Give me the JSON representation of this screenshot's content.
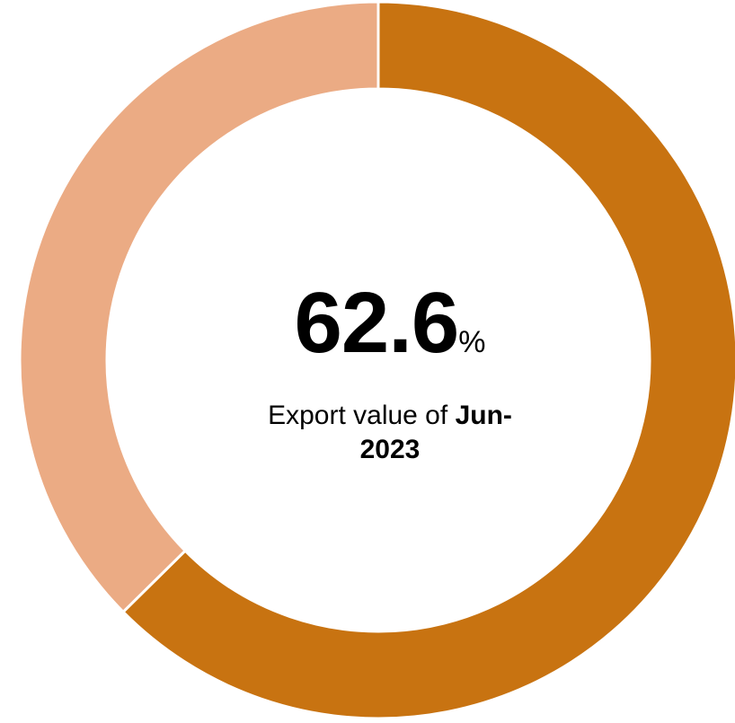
{
  "chart_data": {
    "type": "pie",
    "variant": "donut",
    "slices": [
      {
        "value": 62.6,
        "color": "#C87311"
      },
      {
        "value": 37.4,
        "color": "#EBAB84"
      }
    ],
    "start_angle_deg": 0,
    "direction": "clockwise",
    "center_value": "62.6",
    "center_unit": "%",
    "caption_prefix": "Export value of",
    "caption_period_part1": "Jun-",
    "caption_period_part2": "2023"
  }
}
